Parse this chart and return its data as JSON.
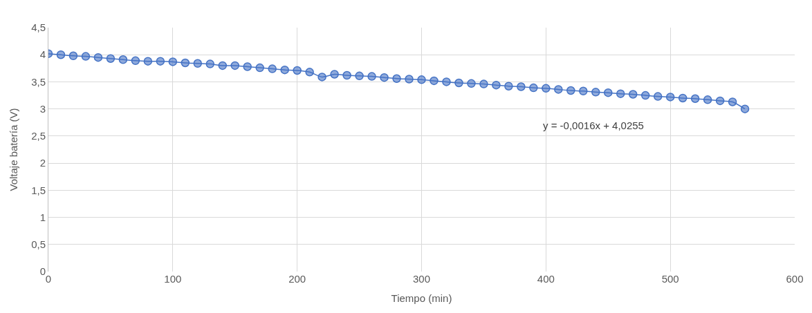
{
  "chart_data": {
    "type": "line",
    "xlabel": "Tiempo (min)",
    "ylabel": "Voltaje batería (V)",
    "x": [
      0,
      10,
      20,
      30,
      40,
      50,
      60,
      70,
      80,
      90,
      100,
      110,
      120,
      130,
      140,
      150,
      160,
      170,
      180,
      190,
      200,
      210,
      220,
      230,
      240,
      250,
      260,
      270,
      280,
      290,
      300,
      310,
      320,
      330,
      340,
      350,
      360,
      370,
      380,
      390,
      400,
      410,
      420,
      430,
      440,
      450,
      460,
      470,
      480,
      490,
      500,
      510,
      520,
      530,
      540,
      550,
      560
    ],
    "series": [
      {
        "color": "#4472c4",
        "values": [
          4.02,
          4.0,
          3.98,
          3.97,
          3.95,
          3.93,
          3.91,
          3.89,
          3.88,
          3.88,
          3.87,
          3.85,
          3.84,
          3.83,
          3.8,
          3.8,
          3.78,
          3.76,
          3.74,
          3.72,
          3.71,
          3.68,
          3.59,
          3.64,
          3.62,
          3.61,
          3.6,
          3.58,
          3.56,
          3.55,
          3.54,
          3.52,
          3.5,
          3.48,
          3.47,
          3.46,
          3.44,
          3.42,
          3.41,
          3.39,
          3.38,
          3.36,
          3.34,
          3.33,
          3.31,
          3.3,
          3.28,
          3.27,
          3.25,
          3.23,
          3.22,
          3.2,
          3.19,
          3.17,
          3.15,
          3.13,
          3.0
        ]
      }
    ],
    "xlim": [
      0,
      600
    ],
    "xticks": [
      0,
      100,
      200,
      300,
      400,
      500,
      600
    ],
    "ylim": [
      0,
      4.5
    ],
    "yticks": [
      {
        "value": 0,
        "label": "0"
      },
      {
        "value": 0.5,
        "label": "0,5"
      },
      {
        "value": 1,
        "label": "1"
      },
      {
        "value": 1.5,
        "label": "1,5"
      },
      {
        "value": 2,
        "label": "2"
      },
      {
        "value": 2.5,
        "label": "2,5"
      },
      {
        "value": 3,
        "label": "3"
      },
      {
        "value": 3.5,
        "label": "3,5"
      },
      {
        "value": 4,
        "label": "4"
      },
      {
        "value": 4.5,
        "label": "4,5"
      }
    ],
    "annotations": [
      "y = -0,0016x + 4,0255"
    ],
    "grid": true,
    "marker": "circle",
    "line_style": "solid"
  }
}
